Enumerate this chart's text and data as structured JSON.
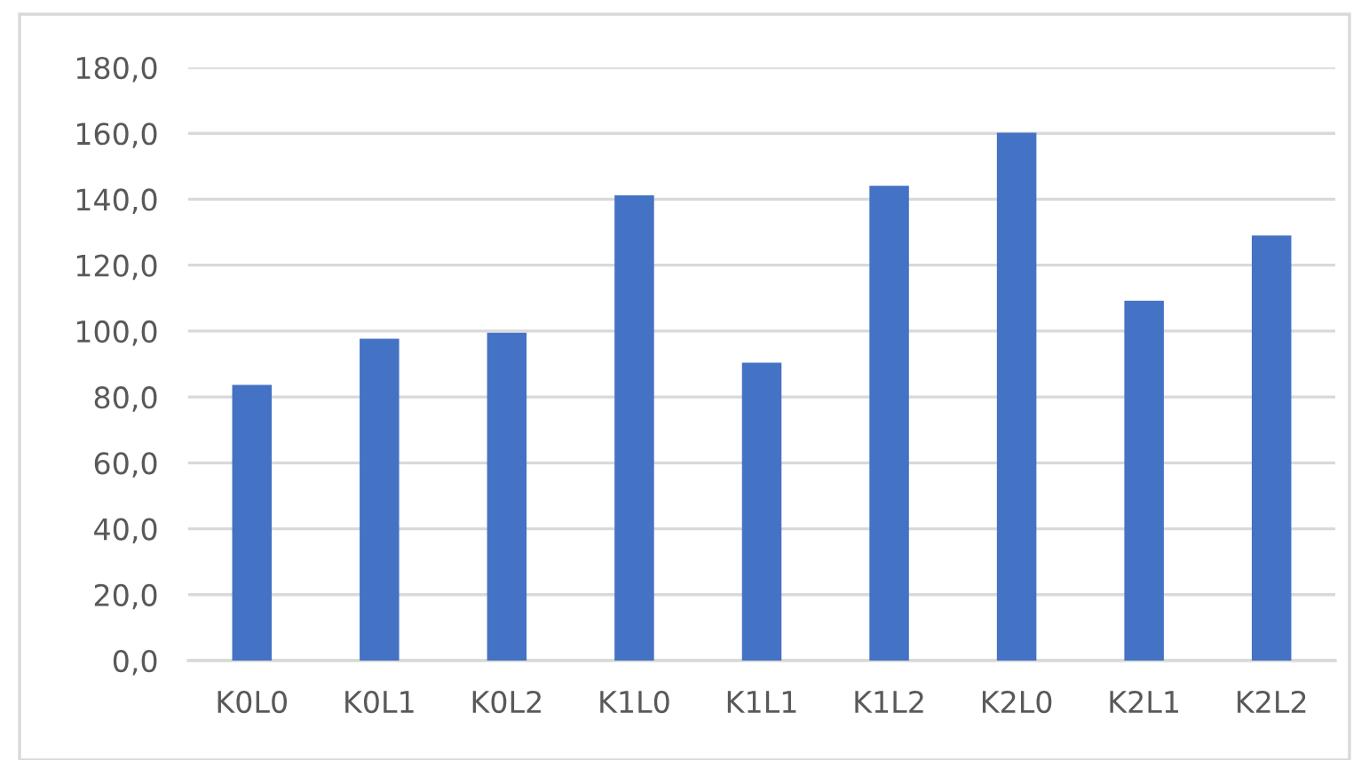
{
  "chart_data": {
    "type": "bar",
    "categories": [
      "K0L0",
      "K0L1",
      "K0L2",
      "K1L0",
      "K1L1",
      "K1L2",
      "K2L0",
      "K2L1",
      "K2L2"
    ],
    "values": [
      83.7,
      97.7,
      99.5,
      141.2,
      90.4,
      144.1,
      160.2,
      109.2,
      129.0
    ],
    "color": "#4472c4",
    "ylim": [
      0,
      180
    ],
    "yticks": [
      {
        "value": 0,
        "label": "0,0"
      },
      {
        "value": 20,
        "label": "20,0"
      },
      {
        "value": 40,
        "label": "40,0"
      },
      {
        "value": 60,
        "label": "60,0"
      },
      {
        "value": 80,
        "label": "80,0"
      },
      {
        "value": 100,
        "label": "100,0"
      },
      {
        "value": 120,
        "label": "120,0"
      },
      {
        "value": 140,
        "label": "140,0"
      },
      {
        "value": 160,
        "label": "160,0"
      },
      {
        "value": 180,
        "label": "180,0"
      }
    ],
    "grid": "y"
  }
}
